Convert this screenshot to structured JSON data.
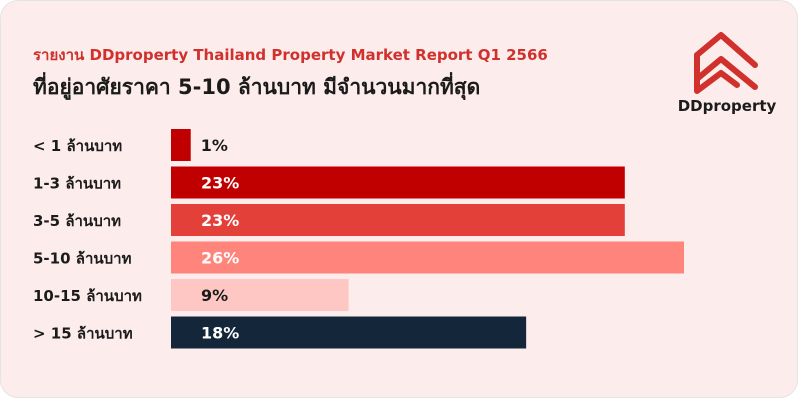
{
  "header": {
    "subtitle": "รายงาน DDproperty Thailand Property Market Report Q1 2566",
    "title": "ที่อยู่อาศัยราคา 5-10 ล้านบาท มีจำนวนมากที่สุด"
  },
  "logo": {
    "icon": "ddproperty-house-logo-icon",
    "text": "DDproperty",
    "color": "#d0312d"
  },
  "chart_data": {
    "type": "bar",
    "orientation": "horizontal",
    "categories": [
      "< 1 ล้านบาท",
      "1-3 ล้านบาท",
      "3-5 ล้านบาท",
      "5-10 ล้านบาท",
      "10-15 ล้านบาท",
      "> 15 ล้านบาท"
    ],
    "values": [
      1,
      23,
      23,
      26,
      9,
      18
    ],
    "value_labels": [
      "1%",
      "23%",
      "23%",
      "26%",
      "9%",
      "18%"
    ],
    "unit": "%",
    "colors": [
      "#c00000",
      "#c00000",
      "#e3403a",
      "#ff857c",
      "#ffc7c4",
      "#13263a"
    ],
    "title": "ที่อยู่อาศัยราคา 5-10 ล้านบาท มีจำนวนมากที่สุด",
    "xlabel": "",
    "ylabel": "",
    "xlim": [
      0,
      26
    ],
    "grid": false,
    "legend": "none"
  }
}
